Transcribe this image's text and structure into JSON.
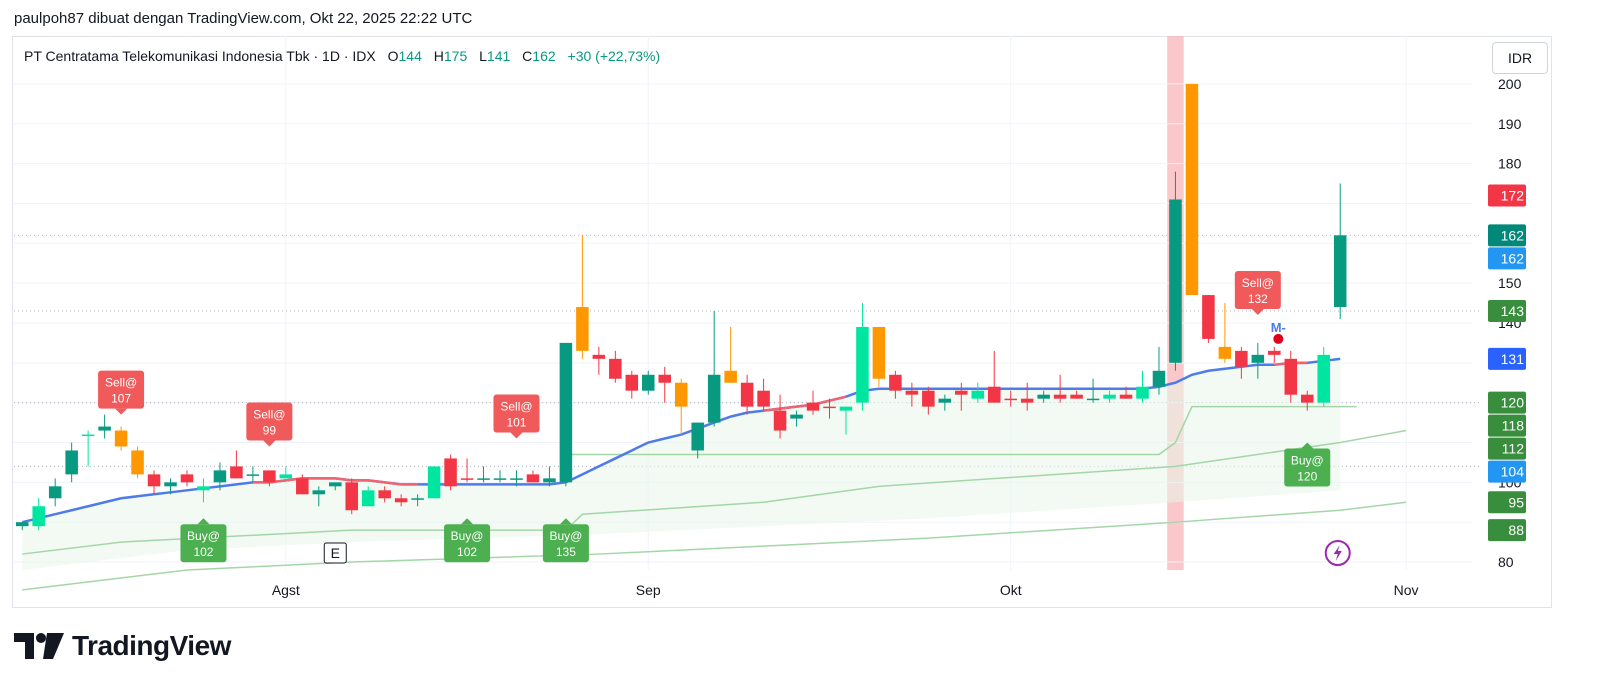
{
  "header": {
    "attribution": "paulpoh87 dibuat dengan TradingView.com, Okt 22, 2025 22:22 UTC"
  },
  "legend": {
    "symbol": "PT Centratama Telekomunikasi Indonesia Tbk · 1D · IDX",
    "o_label": "O",
    "o_value": "144",
    "h_label": "H",
    "h_value": "175",
    "l_label": "L",
    "l_value": "141",
    "c_label": "C",
    "c_value": "162",
    "change": "+30 (+22,73%)"
  },
  "currency": "IDR",
  "branding": {
    "logo_text": "TradingView"
  },
  "colors": {
    "up": "#089981",
    "down": "#f23645",
    "up_bright": "#00e6a0",
    "orange": "#ff9800",
    "ma_blue": "#4f7be8",
    "ma_red": "#f06470",
    "band": "#a5d6a7",
    "buy_label": "#4caf50",
    "sell_label": "#f05a5a",
    "highlight": "#f8b4b8",
    "tag_green": "#388e3c",
    "tag_blue": "#2962ff",
    "tag_red": "#f23645",
    "tag_teal": "#00897b",
    "tag_lightblue": "#2196f3"
  },
  "chart_data": {
    "type": "candlestick",
    "title": "PT Centratama Telekomunikasi Indonesia Tbk · 1D · IDX",
    "ylim": [
      78,
      206
    ],
    "y_ticks": [
      80,
      100,
      140,
      150,
      180,
      190,
      200
    ],
    "x_ticks": [
      {
        "label": "Agst",
        "index": 16
      },
      {
        "label": "Sep",
        "index": 38
      },
      {
        "label": "Okt",
        "index": 60
      },
      {
        "label": "Nov",
        "index": 84
      }
    ],
    "x_range": [
      -0.5,
      88
    ],
    "candles": [
      {
        "o": 89,
        "h": 90,
        "l": 88,
        "c": 90,
        "color": "up"
      },
      {
        "o": 89,
        "h": 96,
        "l": 88,
        "c": 94,
        "color": "up_bright"
      },
      {
        "o": 96,
        "h": 101,
        "l": 94,
        "c": 99,
        "color": "up"
      },
      {
        "o": 102,
        "h": 110,
        "l": 100,
        "c": 108,
        "color": "up"
      },
      {
        "o": 112,
        "h": 113,
        "l": 104,
        "c": 112,
        "color": "up_bright"
      },
      {
        "o": 114,
        "h": 117,
        "l": 111,
        "c": 113,
        "color": "up"
      },
      {
        "o": 113,
        "h": 114,
        "l": 108,
        "c": 109,
        "color": "orange"
      },
      {
        "o": 108,
        "h": 109,
        "l": 101,
        "c": 102,
        "color": "orange"
      },
      {
        "o": 102,
        "h": 103,
        "l": 97,
        "c": 99,
        "color": "down"
      },
      {
        "o": 99,
        "h": 101,
        "l": 97,
        "c": 100,
        "color": "up"
      },
      {
        "o": 102,
        "h": 103,
        "l": 99,
        "c": 100,
        "color": "down"
      },
      {
        "o": 98,
        "h": 101,
        "l": 95,
        "c": 99,
        "color": "up_bright"
      },
      {
        "o": 100,
        "h": 105,
        "l": 98,
        "c": 103,
        "color": "up"
      },
      {
        "o": 104,
        "h": 108,
        "l": 101,
        "c": 101,
        "color": "down"
      },
      {
        "o": 102,
        "h": 104,
        "l": 100,
        "c": 102,
        "color": "up"
      },
      {
        "o": 103,
        "h": 103,
        "l": 99,
        "c": 100,
        "color": "down"
      },
      {
        "o": 101,
        "h": 104,
        "l": 101,
        "c": 102,
        "color": "up_bright"
      },
      {
        "o": 101,
        "h": 102,
        "l": 97,
        "c": 97,
        "color": "down"
      },
      {
        "o": 98,
        "h": 99,
        "l": 94,
        "c": 97,
        "color": "up"
      },
      {
        "o": 99,
        "h": 100,
        "l": 98,
        "c": 100,
        "color": "up"
      },
      {
        "o": 100,
        "h": 101,
        "l": 92,
        "c": 93,
        "color": "down"
      },
      {
        "o": 94,
        "h": 99,
        "l": 94,
        "c": 98,
        "color": "up_bright"
      },
      {
        "o": 98,
        "h": 99,
        "l": 95,
        "c": 96,
        "color": "down"
      },
      {
        "o": 96,
        "h": 97,
        "l": 94,
        "c": 95,
        "color": "down"
      },
      {
        "o": 96,
        "h": 97,
        "l": 94,
        "c": 96,
        "color": "up"
      },
      {
        "o": 96,
        "h": 104,
        "l": 96,
        "c": 104,
        "color": "up_bright"
      },
      {
        "o": 106,
        "h": 107,
        "l": 98,
        "c": 99,
        "color": "down"
      },
      {
        "o": 101,
        "h": 106,
        "l": 100,
        "c": 101,
        "color": "down"
      },
      {
        "o": 101,
        "h": 104,
        "l": 100,
        "c": 101,
        "color": "up"
      },
      {
        "o": 101,
        "h": 103,
        "l": 100,
        "c": 101,
        "color": "up"
      },
      {
        "o": 101,
        "h": 103,
        "l": 99,
        "c": 101,
        "color": "up"
      },
      {
        "o": 102,
        "h": 103,
        "l": 100,
        "c": 100,
        "color": "down"
      },
      {
        "o": 100,
        "h": 104,
        "l": 99,
        "c": 101,
        "color": "up"
      },
      {
        "o": 100,
        "h": 135,
        "l": 99,
        "c": 135,
        "color": "up"
      },
      {
        "o": 144,
        "h": 162,
        "l": 131,
        "c": 133,
        "color": "orange"
      },
      {
        "o": 132,
        "h": 134,
        "l": 127,
        "c": 131,
        "color": "down"
      },
      {
        "o": 131,
        "h": 133,
        "l": 125,
        "c": 126,
        "color": "down"
      },
      {
        "o": 127,
        "h": 128,
        "l": 121,
        "c": 123,
        "color": "down"
      },
      {
        "o": 123,
        "h": 128,
        "l": 122,
        "c": 127,
        "color": "up"
      },
      {
        "o": 127,
        "h": 129,
        "l": 120,
        "c": 125,
        "color": "down"
      },
      {
        "o": 125,
        "h": 126,
        "l": 112,
        "c": 119,
        "color": "orange"
      },
      {
        "o": 108,
        "h": 115,
        "l": 106,
        "c": 115,
        "color": "up"
      },
      {
        "o": 115,
        "h": 143,
        "l": 114,
        "c": 127,
        "color": "up"
      },
      {
        "o": 128,
        "h": 139,
        "l": 125,
        "c": 125,
        "color": "orange"
      },
      {
        "o": 125,
        "h": 127,
        "l": 117,
        "c": 119,
        "color": "down"
      },
      {
        "o": 119,
        "h": 126,
        "l": 118,
        "c": 123,
        "color": "down"
      },
      {
        "o": 118,
        "h": 122,
        "l": 111,
        "c": 113,
        "color": "down"
      },
      {
        "o": 116,
        "h": 118,
        "l": 114,
        "c": 117,
        "color": "up"
      },
      {
        "o": 118,
        "h": 123,
        "l": 117,
        "c": 120,
        "color": "down"
      },
      {
        "o": 119,
        "h": 121,
        "l": 116,
        "c": 119,
        "color": "down"
      },
      {
        "o": 118,
        "h": 119,
        "l": 112,
        "c": 119,
        "color": "up_bright"
      },
      {
        "o": 120,
        "h": 145,
        "l": 118,
        "c": 139,
        "color": "up_bright"
      },
      {
        "o": 139,
        "h": 139,
        "l": 124,
        "c": 126,
        "color": "orange"
      },
      {
        "o": 127,
        "h": 128,
        "l": 121,
        "c": 123,
        "color": "down"
      },
      {
        "o": 123,
        "h": 125,
        "l": 119,
        "c": 122,
        "color": "down"
      },
      {
        "o": 123,
        "h": 124,
        "l": 117,
        "c": 119,
        "color": "down"
      },
      {
        "o": 120,
        "h": 122,
        "l": 118,
        "c": 121,
        "color": "up"
      },
      {
        "o": 122,
        "h": 125,
        "l": 118,
        "c": 123,
        "color": "down"
      },
      {
        "o": 121,
        "h": 125,
        "l": 120,
        "c": 123,
        "color": "up_bright"
      },
      {
        "o": 124,
        "h": 133,
        "l": 120,
        "c": 120,
        "color": "down"
      },
      {
        "o": 121,
        "h": 123,
        "l": 119,
        "c": 121,
        "color": "down"
      },
      {
        "o": 121,
        "h": 125,
        "l": 118,
        "c": 120,
        "color": "down"
      },
      {
        "o": 122,
        "h": 123,
        "l": 120,
        "c": 121,
        "color": "up"
      },
      {
        "o": 122,
        "h": 127,
        "l": 120,
        "c": 121,
        "color": "down"
      },
      {
        "o": 122,
        "h": 123,
        "l": 121,
        "c": 121,
        "color": "down"
      },
      {
        "o": 121,
        "h": 126,
        "l": 120,
        "c": 121,
        "color": "up"
      },
      {
        "o": 121,
        "h": 123,
        "l": 120,
        "c": 122,
        "color": "up_bright"
      },
      {
        "o": 122,
        "h": 124,
        "l": 121,
        "c": 121,
        "color": "down"
      },
      {
        "o": 121,
        "h": 128,
        "l": 120,
        "c": 124,
        "color": "up_bright"
      },
      {
        "o": 124,
        "h": 134,
        "l": 122,
        "c": 128,
        "color": "up"
      },
      {
        "o": 130,
        "h": 178,
        "l": 128,
        "c": 171,
        "color": "up"
      },
      {
        "o": 200,
        "h": 200,
        "l": 147,
        "c": 147,
        "color": "orange"
      },
      {
        "o": 147,
        "h": 147,
        "l": 135,
        "c": 136,
        "color": "down"
      },
      {
        "o": 134,
        "h": 145,
        "l": 130,
        "c": 131,
        "color": "orange"
      },
      {
        "o": 133,
        "h": 134,
        "l": 126,
        "c": 129,
        "color": "down"
      },
      {
        "o": 132,
        "h": 135,
        "l": 126,
        "c": 130,
        "color": "up"
      },
      {
        "o": 133,
        "h": 134,
        "l": 130,
        "c": 132,
        "color": "down"
      },
      {
        "o": 131,
        "h": 133,
        "l": 120,
        "c": 122,
        "color": "down"
      },
      {
        "o": 122,
        "h": 123,
        "l": 118,
        "c": 120,
        "color": "down"
      },
      {
        "o": 120,
        "h": 134,
        "l": 119,
        "c": 132,
        "color": "up_bright"
      },
      {
        "o": 144,
        "h": 175,
        "l": 141,
        "c": 162,
        "color": "up"
      }
    ],
    "ma": [
      90,
      91,
      92,
      93,
      94,
      95,
      96,
      96.5,
      97,
      97.5,
      98,
      98.5,
      99,
      99.5,
      100,
      100,
      100.5,
      101,
      101,
      101,
      100.5,
      100.5,
      100,
      99.5,
      99.5,
      99.5,
      99.5,
      99.5,
      99.5,
      99.5,
      99.5,
      99.5,
      99.5,
      100,
      102,
      104,
      106,
      108,
      110,
      111,
      112,
      113.5,
      115,
      116.5,
      117.5,
      118,
      118.5,
      119,
      119.5,
      120.5,
      121.5,
      123,
      123.5,
      123.5,
      123.5,
      123.5,
      123.5,
      123.5,
      123.5,
      123.5,
      123.5,
      123.5,
      123.5,
      123.5,
      123.5,
      123.5,
      123.5,
      123.5,
      123.5,
      124,
      125,
      127,
      128,
      128.5,
      129,
      129.5,
      129.5,
      130,
      130,
      130.5,
      131
    ],
    "ma_red_segments": [
      [
        14,
        24
      ],
      [
        45,
        50
      ],
      [
        76,
        78
      ]
    ],
    "band_upper": [
      null,
      null,
      null,
      null,
      null,
      null,
      null,
      null,
      null,
      null,
      null,
      null,
      null,
      null,
      null,
      null,
      null,
      null,
      null,
      null,
      null,
      null,
      null,
      null,
      null,
      null,
      null,
      null,
      null,
      null,
      null,
      null,
      null,
      107,
      107,
      107,
      107,
      107,
      107,
      107,
      107,
      107,
      107,
      107,
      107,
      107,
      107,
      107,
      107,
      107,
      107,
      107,
      107,
      107,
      107,
      107,
      107,
      107,
      107,
      107,
      107,
      107,
      107,
      107,
      107,
      107,
      107,
      107,
      107,
      107,
      110,
      119,
      119,
      119,
      119,
      119,
      119,
      119,
      119,
      119,
      119,
      119
    ],
    "band_mid": [
      [
        0,
        82
      ],
      [
        6,
        85
      ],
      [
        20,
        88
      ],
      [
        33,
        88
      ],
      [
        34,
        92
      ],
      [
        45,
        95
      ],
      [
        52,
        99
      ],
      [
        70,
        104
      ],
      [
        80,
        110
      ],
      [
        84,
        113
      ]
    ],
    "band_low": [
      [
        0,
        73
      ],
      [
        10,
        78
      ],
      [
        20,
        80
      ],
      [
        35,
        82
      ],
      [
        45,
        84
      ],
      [
        55,
        86
      ],
      [
        70,
        90
      ],
      [
        80,
        93
      ],
      [
        84,
        95
      ]
    ],
    "signals": [
      {
        "type": "sell",
        "text": "Sell@",
        "price": "107",
        "index": 6,
        "y": 117
      },
      {
        "type": "sell",
        "text": "Sell@",
        "price": "99",
        "index": 15,
        "y": 109
      },
      {
        "type": "sell",
        "text": "Sell@",
        "price": "101",
        "index": 30,
        "y": 111
      },
      {
        "type": "sell",
        "text": "Sell@",
        "price": "132",
        "index": 75,
        "y": 142
      },
      {
        "type": "buy",
        "text": "Buy@",
        "price": "102",
        "index": 11,
        "y": 91
      },
      {
        "type": "buy",
        "text": "Buy@",
        "price": "102",
        "index": 27,
        "y": 91
      },
      {
        "type": "buy",
        "text": "Buy@",
        "price": "135",
        "index": 33,
        "y": 91
      },
      {
        "type": "buy",
        "text": "Buy@",
        "price": "120",
        "index": 78,
        "y": 110
      }
    ],
    "price_tags": [
      {
        "value": 172,
        "label": "172",
        "color": "tag_red"
      },
      {
        "value": 162,
        "label": "162",
        "color": "tag_teal"
      },
      {
        "value": 162,
        "label": "162",
        "color": "tag_lightblue"
      },
      {
        "value": 143,
        "label": "143",
        "color": "tag_green"
      },
      {
        "value": 131,
        "label": "131",
        "color": "tag_blue"
      },
      {
        "value": 120,
        "label": "120",
        "color": "tag_green"
      },
      {
        "value": 118,
        "label": "118",
        "color": "tag_green"
      },
      {
        "value": 112,
        "label": "112",
        "color": "tag_green"
      },
      {
        "value": 104,
        "label": "104",
        "color": "tag_lightblue"
      },
      {
        "value": 95,
        "label": "95",
        "color": "tag_green"
      },
      {
        "value": 88,
        "label": "88",
        "color": "tag_green"
      }
    ],
    "highlight_index": 70,
    "markers": {
      "e_label": "E",
      "e_index": 19,
      "m_label": "M-",
      "m_index": 76,
      "m_y": 139,
      "dot_index": 76,
      "dot_y": 136,
      "flash_index": 79
    }
  }
}
